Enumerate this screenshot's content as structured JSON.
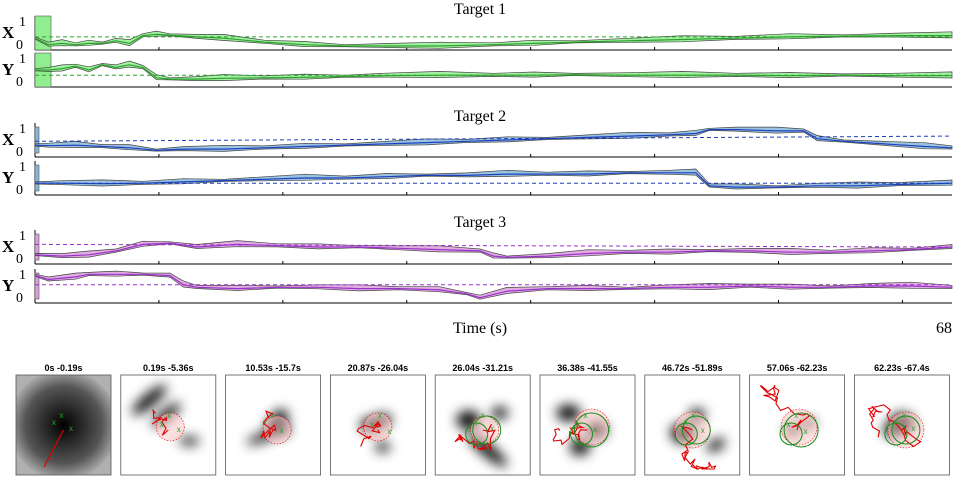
{
  "chart_data": [
    {
      "type": "line",
      "title": "Target 1",
      "color": "#2ca02c",
      "fill": "#90ee90",
      "xlim": [
        0,
        68
      ],
      "ylim": [
        0,
        1
      ],
      "panels": [
        {
          "label": "X",
          "ytick_labels": [
            "1",
            "0"
          ],
          "series": [
            {
              "role": "estimate",
              "x": [
                0,
                1,
                2,
                3,
                4,
                5,
                6,
                7,
                8,
                9,
                10,
                12,
                14,
                17,
                20,
                23,
                26,
                30,
                34,
                37,
                40,
                44,
                48,
                52,
                56,
                60,
                64,
                68
              ],
              "y": [
                0.3,
                0.05,
                0.1,
                0.05,
                0.1,
                0.1,
                0.2,
                0.1,
                0.4,
                0.45,
                0.42,
                0.35,
                0.3,
                0.15,
                0.05,
                0.0,
                0.0,
                0.0,
                0.05,
                0.1,
                0.15,
                0.2,
                0.25,
                0.3,
                0.35,
                0.38,
                0.4,
                0.4
              ]
            },
            {
              "role": "truth",
              "x": [
                0,
                68
              ],
              "y": [
                0.35,
                0.35
              ]
            }
          ]
        },
        {
          "label": "Y",
          "ytick_labels": [
            "1",
            "0"
          ],
          "series": [
            {
              "role": "estimate",
              "x": [
                0,
                1,
                2,
                3,
                4,
                5,
                6,
                7,
                8,
                9,
                10,
                12,
                14,
                17,
                20,
                23,
                26,
                30,
                34,
                37,
                40,
                44,
                48,
                52,
                56,
                60,
                64,
                68
              ],
              "y": [
                0.5,
                0.5,
                0.55,
                0.65,
                0.5,
                0.7,
                0.6,
                0.7,
                0.6,
                0.2,
                0.15,
                0.15,
                0.18,
                0.2,
                0.22,
                0.25,
                0.28,
                0.3,
                0.3,
                0.3,
                0.32,
                0.3,
                0.3,
                0.3,
                0.28,
                0.3,
                0.28,
                0.28
              ]
            },
            {
              "role": "truth",
              "x": [
                0,
                68
              ],
              "y": [
                0.3,
                0.3
              ]
            }
          ]
        }
      ]
    },
    {
      "type": "line",
      "title": "Target 2",
      "color": "#1f3fbf",
      "fill": "#87b8d8",
      "xlim": [
        0,
        68
      ],
      "ylim": [
        0,
        1
      ],
      "panels": [
        {
          "label": "X",
          "ytick_labels": [
            "1",
            "0"
          ],
          "series": [
            {
              "role": "estimate",
              "x": [
                0,
                1,
                3,
                5,
                7,
                9,
                11,
                14,
                17,
                20,
                23,
                26,
                29,
                32,
                35,
                38,
                41,
                44,
                47,
                49,
                50,
                52,
                55,
                57,
                58,
                60,
                63,
                66,
                68
              ],
              "y": [
                0.3,
                0.28,
                0.3,
                0.25,
                0.2,
                0.1,
                0.15,
                0.15,
                0.2,
                0.25,
                0.3,
                0.35,
                0.4,
                0.45,
                0.5,
                0.55,
                0.6,
                0.65,
                0.7,
                0.75,
                0.9,
                0.9,
                0.85,
                0.85,
                0.55,
                0.45,
                0.35,
                0.25,
                0.2
              ]
            },
            {
              "role": "truth",
              "x": [
                0,
                68
              ],
              "y": [
                0.45,
                0.65
              ]
            }
          ]
        },
        {
          "label": "Y",
          "ytick_labels": [
            "1",
            "0"
          ],
          "series": [
            {
              "role": "estimate",
              "x": [
                0,
                2,
                5,
                8,
                11,
                14,
                17,
                20,
                23,
                26,
                29,
                32,
                35,
                38,
                41,
                44,
                47,
                49,
                50,
                52,
                55,
                58,
                61,
                64,
                68
              ],
              "y": [
                0.3,
                0.3,
                0.28,
                0.3,
                0.35,
                0.4,
                0.45,
                0.5,
                0.5,
                0.55,
                0.6,
                0.6,
                0.65,
                0.65,
                0.65,
                0.7,
                0.7,
                0.7,
                0.2,
                0.15,
                0.15,
                0.2,
                0.2,
                0.25,
                0.3
              ]
            },
            {
              "role": "truth",
              "x": [
                0,
                68
              ],
              "y": [
                0.3,
                0.3
              ]
            }
          ]
        }
      ]
    },
    {
      "type": "line",
      "title": "Target 3",
      "color": "#9932cc",
      "fill": "#dda0dd",
      "xlim": [
        0,
        68
      ],
      "ylim": [
        0,
        1
      ],
      "panels": [
        {
          "label": "X",
          "ytick_labels": [
            "1",
            "0"
          ],
          "series": [
            {
              "role": "estimate",
              "x": [
                0,
                2,
                4,
                6,
                8,
                10,
                12,
                15,
                18,
                21,
                24,
                27,
                30,
                33,
                34,
                35,
                38,
                41,
                44,
                47,
                50,
                53,
                56,
                59,
                62,
                65,
                68
              ],
              "y": [
                0.2,
                0.15,
                0.2,
                0.35,
                0.6,
                0.65,
                0.5,
                0.6,
                0.55,
                0.5,
                0.5,
                0.45,
                0.4,
                0.35,
                0.15,
                0.1,
                0.15,
                0.25,
                0.3,
                0.3,
                0.35,
                0.35,
                0.3,
                0.3,
                0.35,
                0.4,
                0.5
              ]
            },
            {
              "role": "truth",
              "x": [
                0,
                68
              ],
              "y": [
                0.6,
                0.5
              ]
            }
          ]
        },
        {
          "label": "Y",
          "ytick_labels": [
            "1",
            "0"
          ],
          "series": [
            {
              "role": "estimate",
              "x": [
                0,
                1,
                3,
                4,
                6,
                8,
                10,
                11,
                12,
                15,
                18,
                21,
                24,
                27,
                30,
                32,
                33,
                35,
                38,
                41,
                44,
                47,
                50,
                53,
                56,
                59,
                62,
                65,
                68
              ],
              "y": [
                0.9,
                0.75,
                0.85,
                0.95,
                0.95,
                0.95,
                0.9,
                0.55,
                0.45,
                0.4,
                0.45,
                0.45,
                0.4,
                0.4,
                0.35,
                0.2,
                0.05,
                0.3,
                0.4,
                0.4,
                0.4,
                0.45,
                0.45,
                0.5,
                0.45,
                0.45,
                0.5,
                0.5,
                0.45
              ]
            },
            {
              "role": "truth",
              "x": [
                0,
                68
              ],
              "y": [
                0.55,
                0.55
              ]
            }
          ]
        }
      ]
    }
  ],
  "axis": {
    "xlabel": "Time (s)",
    "x_end_label": "68"
  },
  "snapshots": [
    {
      "label": "0s -0.19s"
    },
    {
      "label": "0.19s -5.36s"
    },
    {
      "label": "10.53s -15.7s"
    },
    {
      "label": "20.87s -26.04s"
    },
    {
      "label": "26.04s -31.21s"
    },
    {
      "label": "36.38s -41.55s"
    },
    {
      "label": "46.72s -51.89s"
    },
    {
      "label": "57.06s -62.23s"
    },
    {
      "label": "62.23s -67.4s"
    }
  ],
  "snapshot_marks": {
    "target_marker": "x",
    "target_color": "#2ca02c",
    "track_color": "#e00000",
    "estimate_color": "#1a8a1a"
  }
}
